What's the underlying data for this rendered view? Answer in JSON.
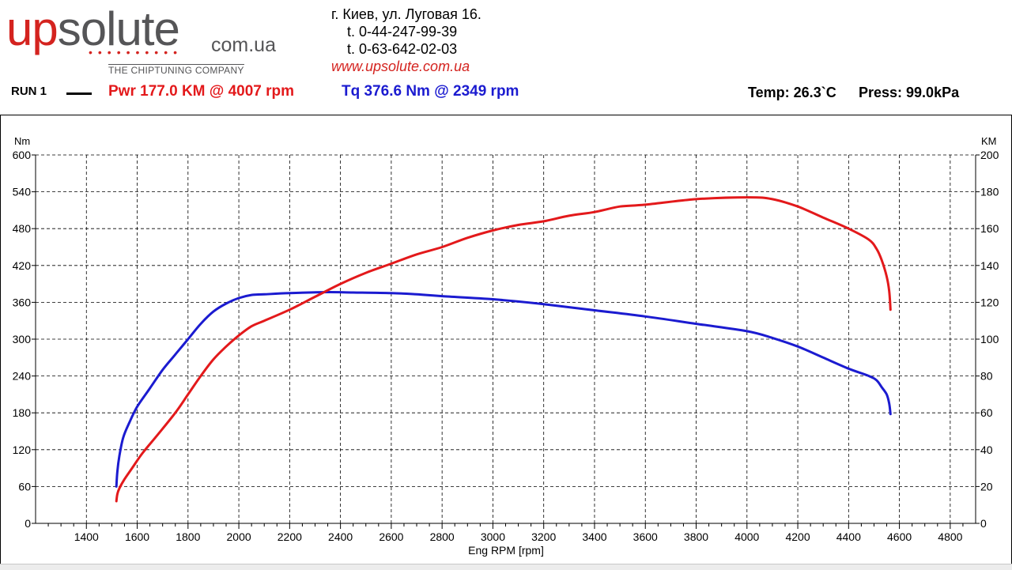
{
  "header": {
    "logo": {
      "up": "up",
      "solute": "solute",
      "domain": "com.ua",
      "dots": "••••••••••",
      "tagline": "THE CHIPTUNING COMPANY"
    },
    "contact": {
      "address": "г. Киев, ул. Луговая 16.",
      "phone1": "t. 0-44-247-99-39",
      "phone2": "t. 0-63-642-02-03",
      "website": "www.upsolute.com.ua"
    },
    "run_label": "RUN 1",
    "power_summary": "Pwr  177.0 KM @ 4007 rpm",
    "torque_summary": "Tq 376.6 Nm @ 2349 rpm",
    "temp": "Temp: 26.3`C",
    "press": "Press: 99.0kPa"
  },
  "colors": {
    "power": "#e3191b",
    "torque": "#1b1bd0",
    "brand_red": "#d4231f",
    "brand_grey": "#555557"
  },
  "chart_data": {
    "type": "line",
    "xlabel": "Eng RPM [rpm]",
    "ylabel_left": "Nm",
    "ylabel_right": "KM",
    "xlim": [
      1200,
      4900
    ],
    "ylim_left": [
      0,
      600
    ],
    "ylim_right": [
      0,
      200
    ],
    "x_ticks": [
      1400,
      1600,
      1800,
      2000,
      2200,
      2400,
      2600,
      2800,
      3000,
      3200,
      3400,
      3600,
      3800,
      4000,
      4200,
      4400,
      4600,
      4800
    ],
    "y_ticks_left": [
      0,
      60,
      120,
      180,
      240,
      300,
      360,
      420,
      480,
      540,
      600
    ],
    "y_ticks_right": [
      0,
      20,
      40,
      60,
      80,
      100,
      120,
      140,
      160,
      180,
      200
    ],
    "grid": true,
    "series": [
      {
        "name": "Tq",
        "axis": "left",
        "color": "#1b1bd0",
        "x": [
          1518,
          1522,
          1530,
          1545,
          1570,
          1600,
          1650,
          1700,
          1750,
          1800,
          1850,
          1900,
          1950,
          2000,
          2050,
          2100,
          2200,
          2349,
          2450,
          2600,
          2700,
          2800,
          3000,
          3200,
          3400,
          3600,
          3800,
          4000,
          4100,
          4200,
          4300,
          4400,
          4480,
          4510,
          4530,
          4550,
          4560,
          4565
        ],
        "y": [
          60,
          85,
          110,
          140,
          165,
          190,
          220,
          250,
          275,
          300,
          325,
          345,
          358,
          367,
          372,
          373,
          375,
          376.6,
          376,
          375,
          373,
          370,
          365,
          357,
          347,
          337,
          325,
          313,
          302,
          288,
          270,
          252,
          240,
          233,
          222,
          210,
          195,
          178
        ]
      },
      {
        "name": "Pwr",
        "axis": "right",
        "color": "#e3191b",
        "x": [
          1518,
          1522,
          1530,
          1550,
          1580,
          1620,
          1680,
          1750,
          1800,
          1850,
          1900,
          1950,
          2000,
          2050,
          2100,
          2200,
          2300,
          2400,
          2500,
          2600,
          2700,
          2800,
          2900,
          3000,
          3100,
          3200,
          3300,
          3400,
          3500,
          3600,
          3800,
          4007,
          4100,
          4200,
          4300,
          4400,
          4480,
          4510,
          4530,
          4550,
          4560,
          4565
        ],
        "y": [
          12,
          16,
          19,
          24,
          30,
          38,
          48,
          60,
          70,
          80,
          89,
          96,
          102,
          107,
          110,
          116,
          123,
          130,
          136,
          141,
          146,
          150,
          155,
          159,
          162,
          164,
          167,
          169,
          172,
          173,
          176,
          177,
          176,
          172,
          166,
          160,
          154,
          149,
          143,
          134,
          126,
          116
        ]
      }
    ]
  }
}
